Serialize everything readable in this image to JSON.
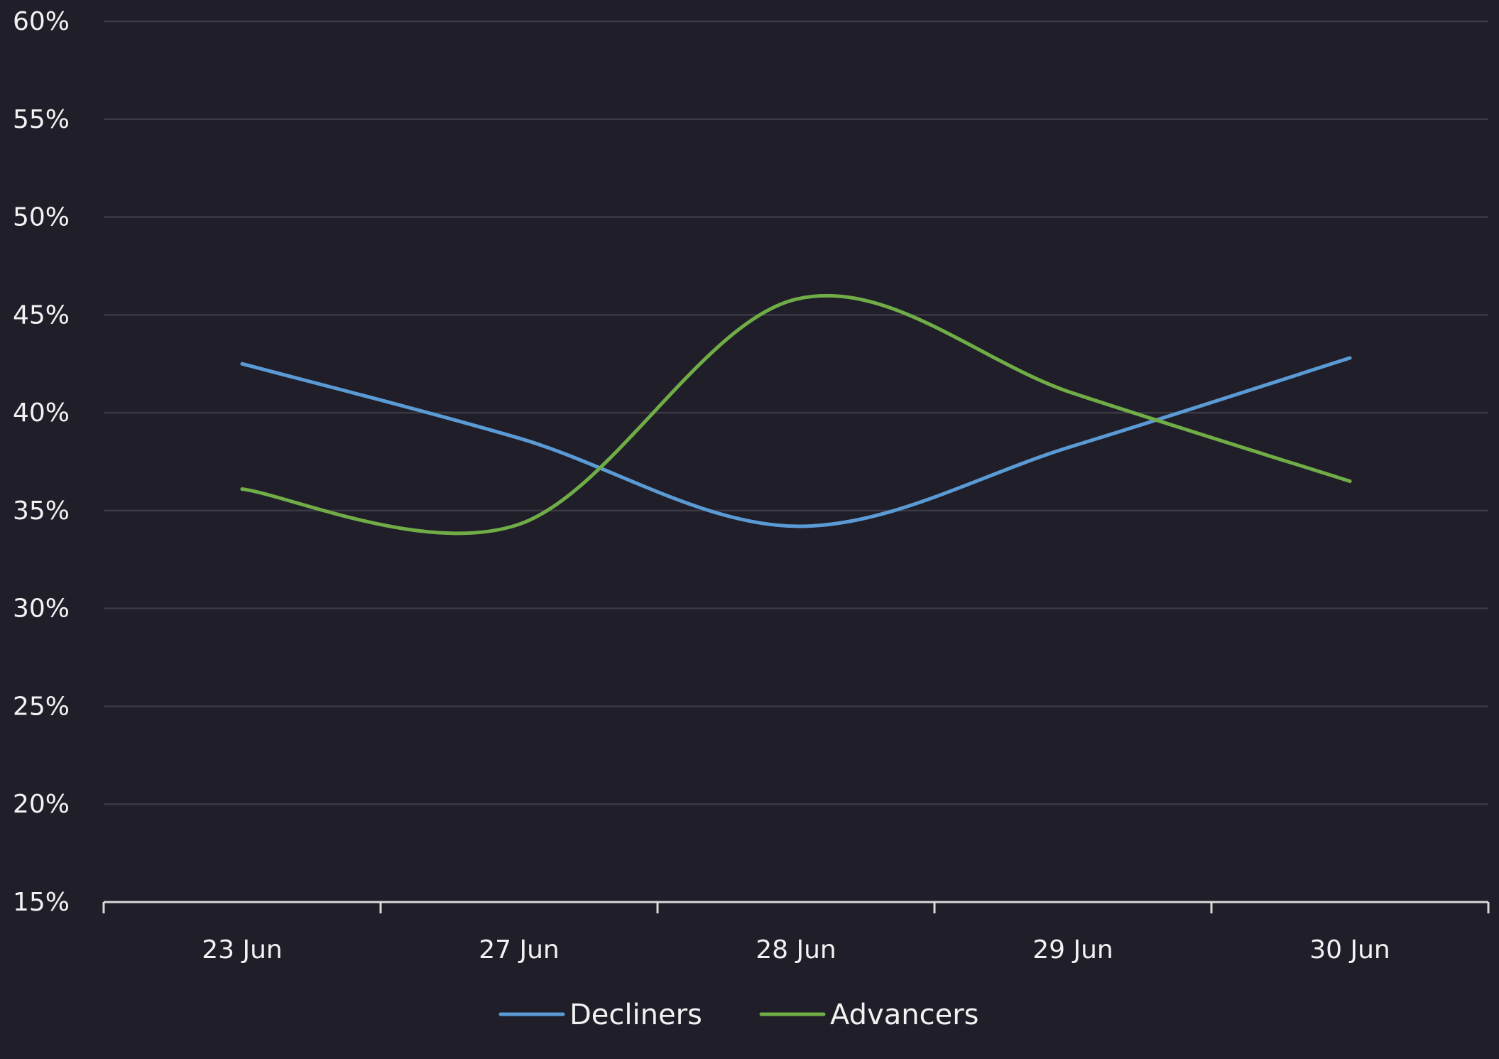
{
  "chart_data": {
    "type": "line",
    "categories": [
      "23 Jun",
      "27 Jun",
      "28 Jun",
      "29 Jun",
      "30 Jun"
    ],
    "series": [
      {
        "name": "Decliners",
        "values": [
          42.5,
          38.7,
          34.2,
          38.3,
          42.8
        ],
        "color": "#5b9bd5"
      },
      {
        "name": "Advancers",
        "values": [
          36.1,
          34.3,
          45.8,
          41.0,
          36.5
        ],
        "color": "#70ad47"
      }
    ],
    "ylim": [
      15,
      60
    ],
    "yticks": [
      "60%",
      "55%",
      "50%",
      "45%",
      "40%",
      "35%",
      "30%",
      "25%",
      "20%",
      "15%"
    ],
    "grid": true,
    "legend": "bottom",
    "colors": {
      "background": "#1f1e29",
      "grid": "#3b3a44",
      "axis": "#d9d9d9",
      "text": "#f2f2f2"
    }
  }
}
